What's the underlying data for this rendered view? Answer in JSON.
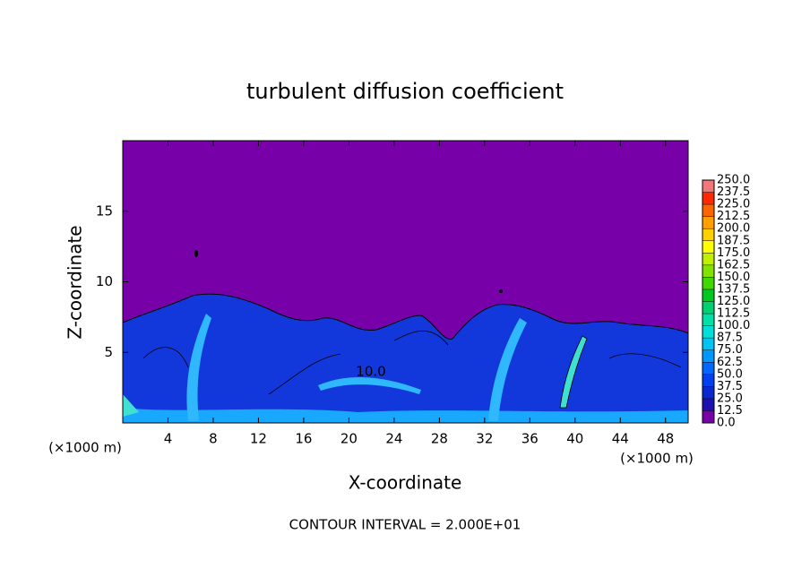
{
  "chart_data": {
    "type": "contour",
    "title": "turbulent diffusion coefficient",
    "x_label": "X-coordinate",
    "y_label": "Z-coordinate",
    "x_unit_label": "(×1000 m)",
    "y_unit_label": "(×1000 m)",
    "annotation": "CONTOUR INTERVAL = 2.000E+01",
    "contour_label": {
      "value": 10,
      "label": "10.0"
    },
    "xlim": [
      0,
      50
    ],
    "ylim": [
      0,
      20
    ],
    "xticks": [
      4,
      8,
      12,
      16,
      20,
      24,
      28,
      32,
      36,
      40,
      44,
      48
    ],
    "yticks": [
      5,
      10,
      15
    ],
    "levels": [
      {
        "value": 0,
        "label": "0.0"
      },
      {
        "value": 12.5,
        "label": "12.5"
      },
      {
        "value": 25,
        "label": "25.0"
      },
      {
        "value": 37.5,
        "label": "37.5"
      },
      {
        "value": 50,
        "label": "50.0"
      },
      {
        "value": 62.5,
        "label": "62.5"
      },
      {
        "value": 75,
        "label": "75.0"
      },
      {
        "value": 87.5,
        "label": "87.5"
      },
      {
        "value": 100,
        "label": "100.0"
      },
      {
        "value": 112.5,
        "label": "112.5"
      },
      {
        "value": 125,
        "label": "125.0"
      },
      {
        "value": 137.5,
        "label": "137.5"
      },
      {
        "value": 150,
        "label": "150.0"
      },
      {
        "value": 162.5,
        "label": "162.5"
      },
      {
        "value": 175,
        "label": "175.0"
      },
      {
        "value": 187.5,
        "label": "187.5"
      },
      {
        "value": 200,
        "label": "200.0"
      },
      {
        "value": 212.5,
        "label": "212.5"
      },
      {
        "value": 225,
        "label": "225.0"
      },
      {
        "value": 237.5,
        "label": "237.5"
      },
      {
        "value": 250,
        "label": "250.0"
      }
    ],
    "colors": [
      "#7800a8",
      "#1c10b0",
      "#0a28d0",
      "#0040f0",
      "#0068ff",
      "#0098ff",
      "#00c4f4",
      "#00e0d8",
      "#00e0a8",
      "#00d070",
      "#00c820",
      "#40d800",
      "#80e400",
      "#c0f000",
      "#ffff00",
      "#ffd000",
      "#ffa000",
      "#ff6400",
      "#ff2800",
      "#f07878"
    ]
  }
}
